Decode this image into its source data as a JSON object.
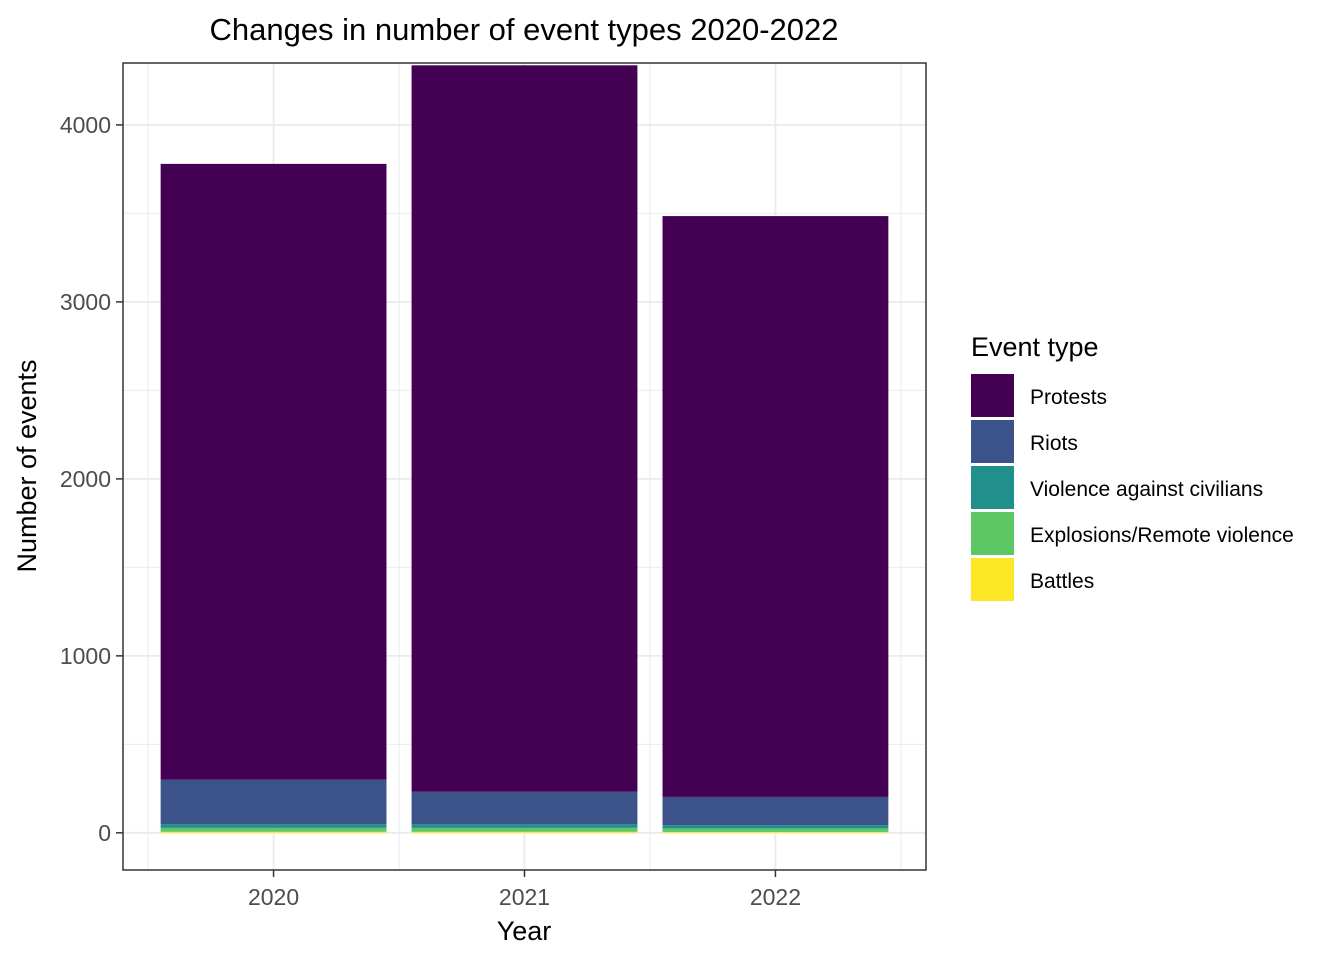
{
  "chart_data": {
    "type": "bar",
    "stacked": true,
    "title": "Changes in number of event types 2020-2022",
    "xlabel": "Year",
    "ylabel": "Number of events",
    "categories": [
      "2020",
      "2021",
      "2022"
    ],
    "ylim": [
      -210,
      4350
    ],
    "yticks": [
      0,
      1000,
      2000,
      3000,
      4000
    ],
    "grid": true,
    "legend_position": "right",
    "legend_title": "Event type",
    "series": [
      {
        "name": "Protests",
        "color": "#440154",
        "values": [
          3480,
          4105,
          3282
        ]
      },
      {
        "name": "Riots",
        "color": "#3B528B",
        "values": [
          252,
          184,
          160
        ]
      },
      {
        "name": "Violence against civilians",
        "color": "#21908C",
        "values": [
          20,
          20,
          18
        ]
      },
      {
        "name": "Explosions/Remote violence",
        "color": "#5DC863",
        "values": [
          22,
          22,
          20
        ]
      },
      {
        "name": "Battles",
        "color": "#FDE725",
        "values": [
          6,
          6,
          5
        ]
      }
    ]
  }
}
